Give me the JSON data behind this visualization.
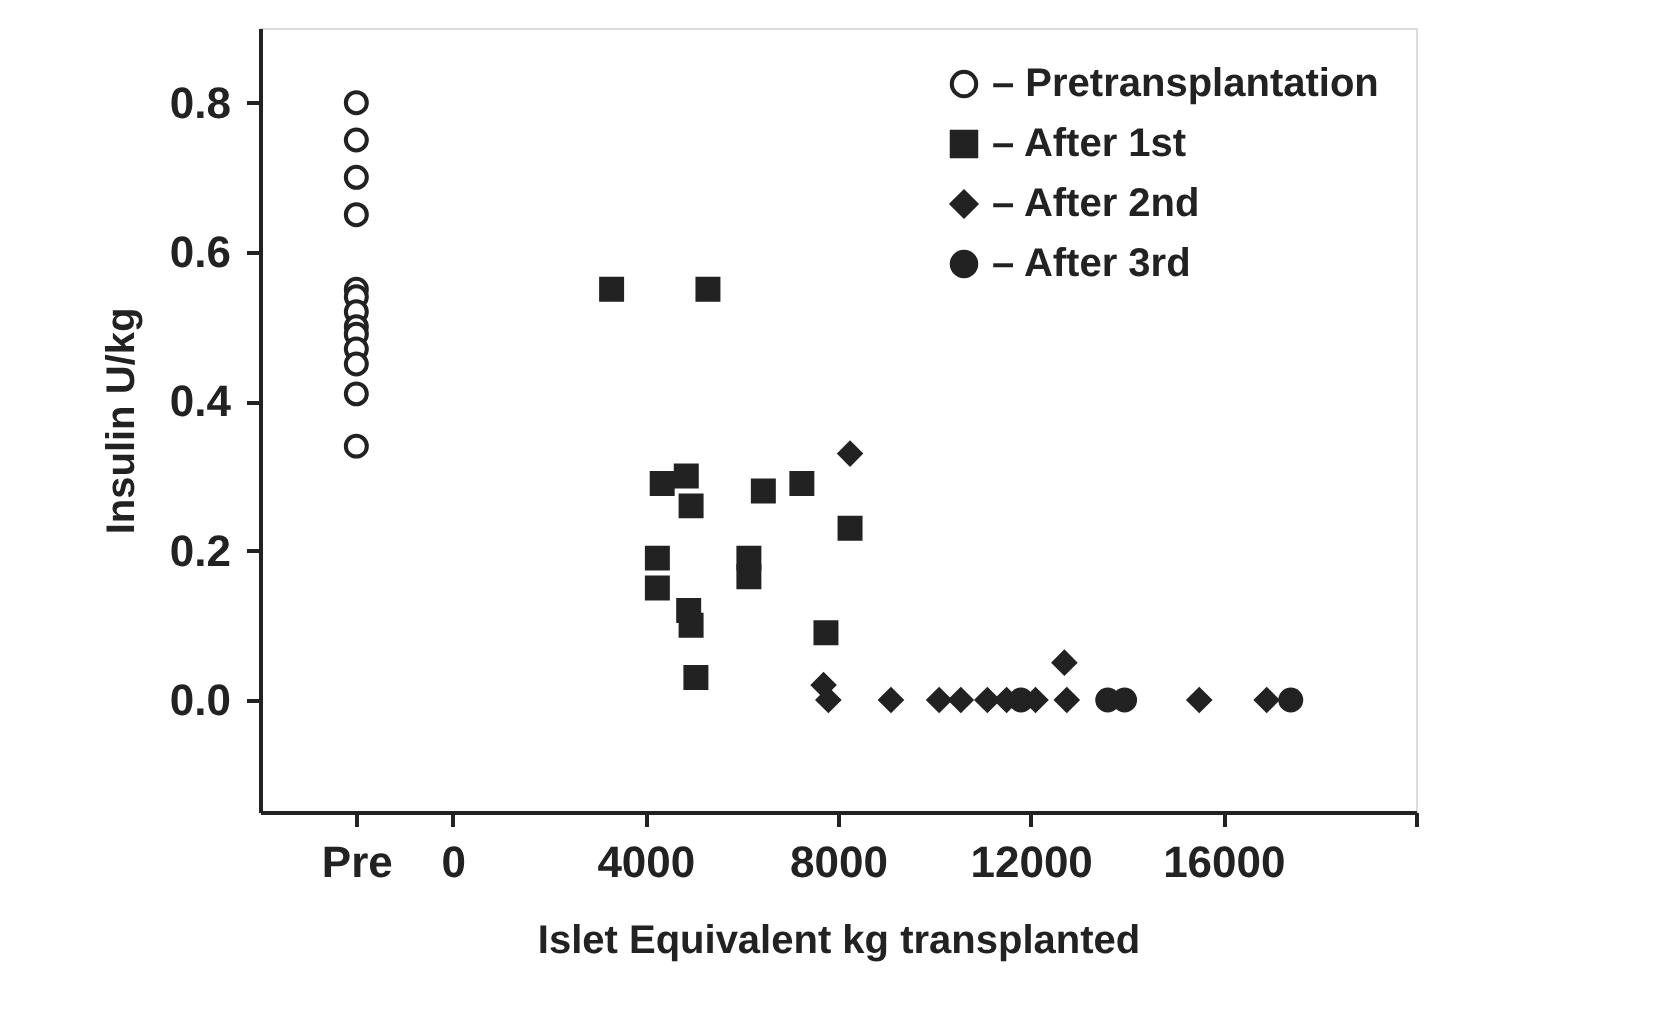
{
  "chart_data": {
    "type": "scatter",
    "xlabel": "Islet Equivalent kg transplanted",
    "ylabel": "Insulin U/kg",
    "xlim": [
      -4000,
      20000
    ],
    "xticks": [
      {
        "value": -2000,
        "label": "Pre"
      },
      0,
      4000,
      8000,
      12000,
      16000,
      {
        "value": 20000,
        "label": null
      }
    ],
    "ylim": [
      -0.15,
      0.9
    ],
    "yticks": [
      {
        "value": 0,
        "label": "0.0"
      },
      0.2,
      0.4,
      0.6,
      0.8
    ],
    "grid": false,
    "legend": "top right",
    "series": [
      {
        "name": "– Pretransplantation",
        "color": "#ffffff",
        "marker": "circle",
        "x": [
          -2000,
          -2000,
          -2000,
          -2000,
          -2000,
          -2000,
          -2000,
          -2000,
          -2000,
          -2000,
          -2000,
          -2000,
          -2000
        ],
        "values": [
          0.8,
          0.75,
          0.7,
          0.65,
          0.55,
          0.54,
          0.52,
          0.5,
          0.49,
          0.47,
          0.45,
          0.41,
          0.34
        ]
      },
      {
        "name": "– After 1st",
        "color": "#222222",
        "marker": "square",
        "x": [
          3300,
          5300,
          4350,
          4850,
          4950,
          6450,
          7250,
          4250,
          4250,
          6150,
          6150,
          4900,
          4950,
          5050,
          7750,
          8250
        ],
        "values": [
          0.55,
          0.55,
          0.29,
          0.3,
          0.26,
          0.28,
          0.29,
          0.19,
          0.15,
          0.19,
          0.165,
          0.12,
          0.1,
          0.03,
          0.09,
          0.23
        ]
      },
      {
        "name": "– After 2nd",
        "color": "#222222",
        "marker": "diamond",
        "x": [
          8250,
          7700,
          7800,
          12700,
          9100,
          10100,
          10550,
          11100,
          11500,
          12100,
          12750,
          15500,
          16900
        ],
        "values": [
          0.33,
          0.02,
          0.0,
          0.05,
          0.0,
          0.0,
          0.0,
          0.0,
          0.0,
          0.0,
          0.0,
          0.0,
          0.0
        ]
      },
      {
        "name": "– After 3rd",
        "color": "#222222",
        "marker": "circle",
        "x": [
          11800,
          13600,
          13950,
          17400
        ],
        "values": [
          0.0,
          0.0,
          0.0,
          0.0
        ]
      }
    ]
  }
}
